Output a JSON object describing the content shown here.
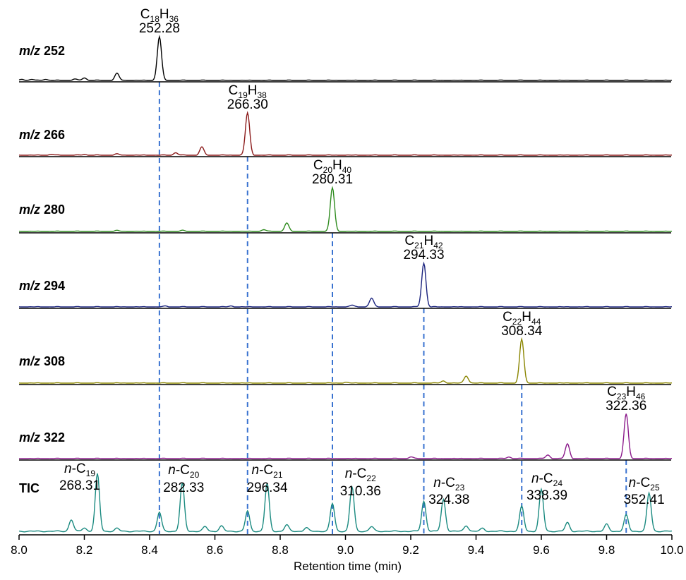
{
  "chart_data": {
    "type": "line",
    "xlabel": "Retention time (min)",
    "xlim": [
      8.0,
      10.0
    ],
    "x_ticks": [
      "8.0",
      "8.2",
      "8.4",
      "8.6",
      "8.8",
      "9.0",
      "9.2",
      "9.4",
      "9.6",
      "9.8",
      "10.0"
    ],
    "grid": false,
    "colors": {
      "m/z 252": "#000000",
      "m/z 266": "#8b1a1a",
      "m/z 280": "#2e8b1e",
      "m/z 294": "#1a237e",
      "m/z 308": "#8a8500",
      "m/z 322": "#8b1a8b",
      "TIC": "#1a8a80",
      "guides": "#3a73d0"
    },
    "series": [
      {
        "name": "m/z 252",
        "label_prefix": "m/z",
        "label_num": "252",
        "peaks": [
          {
            "rt": 8.01,
            "h": 0.03
          },
          {
            "rt": 8.04,
            "h": 0.02
          },
          {
            "rt": 8.08,
            "h": 0.03
          },
          {
            "rt": 8.17,
            "h": 0.03
          },
          {
            "rt": 8.2,
            "h": 0.06
          },
          {
            "rt": 8.3,
            "h": 0.16
          },
          {
            "rt": 8.43,
            "h": 1.0
          }
        ],
        "annotations": [
          {
            "rt": 8.43,
            "formula_main": "C",
            "formula_parts": [
              "C",
              "18",
              "H",
              "36"
            ],
            "mass": "252.28"
          }
        ]
      },
      {
        "name": "m/z 266",
        "label_prefix": "m/z",
        "label_num": "266",
        "peaks": [
          {
            "rt": 8.1,
            "h": 0.02
          },
          {
            "rt": 8.2,
            "h": 0.02
          },
          {
            "rt": 8.3,
            "h": 0.03
          },
          {
            "rt": 8.48,
            "h": 0.06
          },
          {
            "rt": 8.56,
            "h": 0.19
          },
          {
            "rt": 8.7,
            "h": 1.0
          }
        ],
        "annotations": [
          {
            "rt": 8.7,
            "formula_parts": [
              "C",
              "19",
              "H",
              "38"
            ],
            "mass": "266.30"
          }
        ]
      },
      {
        "name": "m/z 280",
        "label_prefix": "m/z",
        "label_num": "280",
        "peaks": [
          {
            "rt": 8.3,
            "h": 0.02
          },
          {
            "rt": 8.5,
            "h": 0.02
          },
          {
            "rt": 8.75,
            "h": 0.04
          },
          {
            "rt": 8.82,
            "h": 0.19
          },
          {
            "rt": 8.96,
            "h": 1.0
          }
        ],
        "annotations": [
          {
            "rt": 8.96,
            "formula_parts": [
              "C",
              "20",
              "H",
              "40"
            ],
            "mass": "280.31"
          }
        ]
      },
      {
        "name": "m/z 294",
        "label_prefix": "m/z",
        "label_num": "294",
        "peaks": [
          {
            "rt": 8.45,
            "h": 0.02
          },
          {
            "rt": 8.65,
            "h": 0.02
          },
          {
            "rt": 9.02,
            "h": 0.04
          },
          {
            "rt": 9.08,
            "h": 0.2
          },
          {
            "rt": 9.24,
            "h": 1.0
          }
        ],
        "annotations": [
          {
            "rt": 9.24,
            "formula_parts": [
              "C",
              "21",
              "H",
              "42"
            ],
            "mass": "294.33"
          }
        ]
      },
      {
        "name": "m/z 308",
        "label_prefix": "m/z",
        "label_num": "308",
        "peaks": [
          {
            "rt": 9.0,
            "h": 0.02
          },
          {
            "rt": 9.3,
            "h": 0.05
          },
          {
            "rt": 9.37,
            "h": 0.17
          },
          {
            "rt": 9.54,
            "h": 1.0
          }
        ],
        "annotations": [
          {
            "rt": 9.54,
            "formula_parts": [
              "C",
              "22",
              "H",
              "44"
            ],
            "mass": "308.34"
          }
        ]
      },
      {
        "name": "m/z 322",
        "label_prefix": "m/z",
        "label_num": "322",
        "peaks": [
          {
            "rt": 9.2,
            "h": 0.04
          },
          {
            "rt": 9.5,
            "h": 0.04
          },
          {
            "rt": 9.62,
            "h": 0.08
          },
          {
            "rt": 9.68,
            "h": 0.33
          },
          {
            "rt": 9.86,
            "h": 1.0
          }
        ],
        "annotations": [
          {
            "rt": 9.86,
            "formula_parts": [
              "C",
              "23",
              "H",
              "46"
            ],
            "mass": "322.36"
          }
        ]
      },
      {
        "name": "TIC",
        "label_prefix": "",
        "label_num": "TIC",
        "peaks": [
          {
            "rt": 8.16,
            "h": 0.2
          },
          {
            "rt": 8.2,
            "h": 0.06
          },
          {
            "rt": 8.24,
            "h": 0.99
          },
          {
            "rt": 8.3,
            "h": 0.05
          },
          {
            "rt": 8.43,
            "h": 0.33
          },
          {
            "rt": 8.5,
            "h": 0.83
          },
          {
            "rt": 8.57,
            "h": 0.08
          },
          {
            "rt": 8.62,
            "h": 0.09
          },
          {
            "rt": 8.7,
            "h": 0.35
          },
          {
            "rt": 8.76,
            "h": 0.83
          },
          {
            "rt": 8.82,
            "h": 0.11
          },
          {
            "rt": 8.88,
            "h": 0.06
          },
          {
            "rt": 8.96,
            "h": 0.48
          },
          {
            "rt": 9.02,
            "h": 0.77
          },
          {
            "rt": 9.08,
            "h": 0.08
          },
          {
            "rt": 9.24,
            "h": 0.52
          },
          {
            "rt": 9.3,
            "h": 0.55
          },
          {
            "rt": 9.37,
            "h": 0.1
          },
          {
            "rt": 9.42,
            "h": 0.05
          },
          {
            "rt": 9.54,
            "h": 0.43
          },
          {
            "rt": 9.6,
            "h": 0.72
          },
          {
            "rt": 9.68,
            "h": 0.15
          },
          {
            "rt": 9.8,
            "h": 0.12
          },
          {
            "rt": 9.86,
            "h": 0.28
          },
          {
            "rt": 9.93,
            "h": 0.66
          }
        ],
        "annotations": [
          {
            "rt": 8.24,
            "formula_parts": [
              "n-C",
              "19",
              "",
              ""
            ],
            "mass": "268.31"
          },
          {
            "rt": 8.5,
            "formula_parts": [
              "n-C",
              "20",
              "",
              ""
            ],
            "mass": "282.33"
          },
          {
            "rt": 8.76,
            "formula_parts": [
              "n-C",
              "21",
              "",
              ""
            ],
            "mass": "296.34"
          },
          {
            "rt": 9.02,
            "formula_parts": [
              "n-C",
              "22",
              "",
              ""
            ],
            "mass": "310.36"
          },
          {
            "rt": 9.3,
            "formula_parts": [
              "n-C",
              "23",
              "",
              ""
            ],
            "mass": "324.38"
          },
          {
            "rt": 9.6,
            "formula_parts": [
              "n-C",
              "24",
              "",
              ""
            ],
            "mass": "338.39"
          },
          {
            "rt": 9.93,
            "formula_parts": [
              "n-C",
              "25",
              "",
              ""
            ],
            "mass": "352.41"
          }
        ]
      }
    ],
    "guide_lines_rt": [
      8.43,
      8.7,
      8.96,
      9.24,
      9.54,
      9.86
    ]
  }
}
